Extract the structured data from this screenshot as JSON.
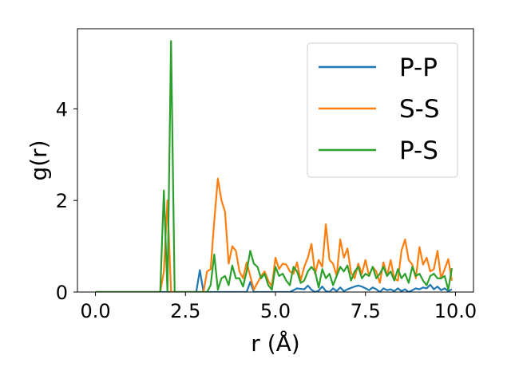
{
  "chart_data": {
    "type": "line",
    "title": "",
    "xlabel": "r (Å)",
    "ylabel": "g(r)",
    "xlim": [
      -0.5,
      10.5
    ],
    "ylim": [
      0,
      5.75
    ],
    "xticks": [
      0.0,
      2.5,
      5.0,
      7.5,
      10.0
    ],
    "xtick_labels": [
      "0.0",
      "2.5",
      "5.0",
      "7.5",
      "10.0"
    ],
    "yticks": [
      0,
      2,
      4
    ],
    "ytick_labels": [
      "0",
      "2",
      "4"
    ],
    "grid": false,
    "legend_position": "top-right",
    "series": [
      {
        "name": "P-P",
        "color": "#1f77b4",
        "x": [
          0.0,
          2.8,
          2.9,
          3.0,
          4.2,
          4.3,
          4.4,
          5.4,
          5.6,
          5.8,
          5.9,
          6.0,
          6.1,
          6.2,
          6.3,
          6.4,
          6.5,
          6.6,
          6.7,
          6.8,
          6.9,
          7.0,
          7.1,
          7.2,
          7.3,
          7.4,
          7.5,
          7.6,
          7.7,
          7.8,
          7.9,
          8.0,
          8.1,
          8.2,
          8.3,
          8.4,
          8.5,
          8.6,
          8.7,
          8.8,
          8.9,
          9.0,
          9.1,
          9.2,
          9.3,
          9.4,
          9.5,
          9.6,
          9.7,
          9.8,
          9.9
        ],
        "y": [
          0,
          0,
          0.48,
          0,
          0,
          0.22,
          0,
          0,
          0.08,
          0.06,
          0.14,
          0.05,
          0.0,
          0.03,
          0.12,
          0.02,
          0.0,
          0.08,
          0.02,
          0.1,
          0.02,
          0.06,
          0.09,
          0.12,
          0.14,
          0.12,
          0.08,
          0.04,
          0.1,
          0.06,
          0.0,
          0.08,
          0.04,
          0.06,
          0.02,
          0.08,
          0.02,
          0.06,
          0.0,
          0.04,
          0.08,
          0.06,
          0.1,
          0.08,
          0.16,
          0.06,
          0.12,
          0.04,
          0.08,
          0.02,
          0.06
        ]
      },
      {
        "name": "S-S",
        "color": "#ff7f0e",
        "x": [
          0.0,
          1.8,
          1.9,
          2.0,
          2.1,
          3.0,
          3.1,
          3.2,
          3.3,
          3.4,
          3.5,
          3.6,
          3.7,
          3.8,
          3.9,
          4.0,
          4.1,
          4.2,
          4.3,
          4.4,
          4.5,
          4.6,
          4.7,
          4.8,
          4.9,
          5.0,
          5.1,
          5.2,
          5.3,
          5.4,
          5.5,
          5.6,
          5.7,
          5.8,
          5.9,
          6.0,
          6.1,
          6.2,
          6.3,
          6.4,
          6.5,
          6.6,
          6.7,
          6.8,
          6.9,
          7.0,
          7.1,
          7.2,
          7.3,
          7.4,
          7.5,
          7.6,
          7.7,
          7.8,
          7.9,
          8.0,
          8.1,
          8.2,
          8.3,
          8.4,
          8.5,
          8.6,
          8.7,
          8.8,
          8.9,
          9.0,
          9.1,
          9.2,
          9.3,
          9.4,
          9.5,
          9.6,
          9.7,
          9.8,
          9.9
        ],
        "y": [
          0,
          0,
          0.45,
          2.0,
          0,
          0,
          0.45,
          0.5,
          1.55,
          2.48,
          2.0,
          1.75,
          0.62,
          1.0,
          0.9,
          0.45,
          0.3,
          0.65,
          0.35,
          0.05,
          0.2,
          0.35,
          0.45,
          0.25,
          0.12,
          0.75,
          0.5,
          0.62,
          0.6,
          0.45,
          0.4,
          0.65,
          0.25,
          0.55,
          0.75,
          1.05,
          0.4,
          0.7,
          0.55,
          1.48,
          0.7,
          0.62,
          0.35,
          1.15,
          0.75,
          0.95,
          0.42,
          0.3,
          0.62,
          0.4,
          0.7,
          0.35,
          0.55,
          0.45,
          0.2,
          0.65,
          0.35,
          0.7,
          0.3,
          0.25,
          0.9,
          1.15,
          0.7,
          0.6,
          0.3,
          0.98,
          0.6,
          0.75,
          0.45,
          0.5,
          0.9,
          0.3,
          0.5,
          0.72,
          0.25
        ]
      },
      {
        "name": "P-S",
        "color": "#2ca02c",
        "x": [
          0.0,
          1.8,
          1.9,
          2.0,
          2.1,
          2.2,
          3.1,
          3.2,
          3.3,
          3.4,
          3.5,
          3.6,
          3.7,
          3.8,
          3.9,
          4.0,
          4.1,
          4.2,
          4.3,
          4.4,
          4.5,
          4.6,
          4.7,
          4.8,
          4.9,
          5.0,
          5.1,
          5.2,
          5.3,
          5.4,
          5.5,
          5.6,
          5.7,
          5.8,
          5.9,
          6.0,
          6.1,
          6.2,
          6.3,
          6.4,
          6.5,
          6.6,
          6.7,
          6.8,
          6.9,
          7.0,
          7.1,
          7.2,
          7.3,
          7.4,
          7.5,
          7.6,
          7.7,
          7.8,
          7.9,
          8.0,
          8.1,
          8.2,
          8.3,
          8.4,
          8.5,
          8.6,
          8.7,
          8.8,
          8.9,
          9.0,
          9.1,
          9.2,
          9.3,
          9.4,
          9.5,
          9.6,
          9.7,
          9.8,
          9.9
        ],
        "y": [
          0,
          0,
          2.22,
          0,
          5.48,
          0,
          0,
          0.15,
          0.82,
          0.05,
          0.3,
          0.35,
          0.15,
          0.58,
          0.3,
          0.3,
          0.12,
          0.45,
          0.9,
          0.62,
          0.55,
          0.3,
          0.4,
          0.15,
          0.05,
          0.55,
          0.35,
          0.4,
          0.25,
          0.15,
          0.55,
          0.45,
          0.2,
          0.25,
          0.45,
          0.55,
          0.45,
          0.1,
          0.5,
          0.3,
          0.4,
          0.15,
          0.35,
          0.55,
          0.45,
          0.58,
          0.25,
          0.45,
          0.55,
          0.3,
          0.4,
          0.35,
          0.55,
          0.3,
          0.4,
          0.55,
          0.35,
          0.45,
          0.25,
          0.5,
          0.3,
          0.4,
          0.2,
          0.55,
          0.35,
          0.4,
          0.25,
          0.15,
          0.35,
          0.4,
          0.3,
          0.3,
          0.35,
          0.05,
          0.52
        ]
      }
    ]
  }
}
